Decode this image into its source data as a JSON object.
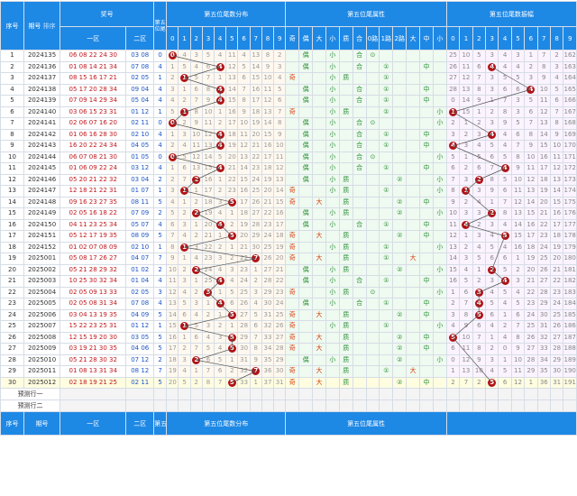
{
  "headers": {
    "seq": "序号",
    "period": "期号",
    "sort": "排序",
    "award": "奖号",
    "zone1": "一区",
    "zone2": "二区",
    "fifth": "第五位尾",
    "dist": "第五位尾数分布",
    "attr": "第五位尾属性",
    "amp": "第五位尾数振幅",
    "digits": [
      "0",
      "1",
      "2",
      "3",
      "4",
      "5",
      "6",
      "7",
      "8",
      "9"
    ],
    "attrs": [
      "奇",
      "偶",
      "大",
      "小",
      "质",
      "合",
      "0路",
      "1路",
      "2路",
      "大",
      "中",
      "小"
    ]
  },
  "rows": [
    {
      "n": "1",
      "p": "2024135",
      "z1": "06 08 22 24 30",
      "z2": "03 08",
      "v": "0",
      "dist": [
        "0",
        "4",
        "3",
        "5",
        "4",
        "11",
        "4",
        "13",
        "8",
        "2"
      ],
      "a": [
        "",
        "偶",
        "",
        "小",
        "",
        "合",
        "⊙",
        "",
        "",
        "",
        "",
        ""
      ],
      "amp": [
        "25",
        "10",
        "5",
        "3",
        "4",
        "3",
        "1",
        "7",
        "2",
        "162"
      ]
    },
    {
      "n": "2",
      "p": "2024136",
      "z1": "01 08 14 21 34",
      "z2": "07 08",
      "v": "4",
      "dist": [
        "1",
        "5",
        "4",
        "6",
        "4",
        "12",
        "5",
        "14",
        "9",
        "3"
      ],
      "a": [
        "",
        "偶",
        "",
        "小",
        "",
        "合",
        "",
        "①",
        "",
        "",
        "中",
        ""
      ],
      "amp": [
        "26",
        "11",
        "6",
        "4",
        "4",
        "4",
        "2",
        "8",
        "3",
        "163"
      ]
    },
    {
      "n": "3",
      "p": "2024137",
      "z1": "08 15 16 17 21",
      "z2": "02 05",
      "v": "1",
      "dist": [
        "2",
        "1",
        "5",
        "7",
        "1",
        "13",
        "6",
        "15",
        "10",
        "4"
      ],
      "a": [
        "奇",
        "",
        "",
        "小",
        "质",
        "",
        "",
        "①",
        "",
        "",
        "",
        ""
      ],
      "amp": [
        "27",
        "12",
        "7",
        "3",
        "5",
        "5",
        "3",
        "9",
        "4",
        "164"
      ]
    },
    {
      "n": "4",
      "p": "2024138",
      "z1": "05 17 20 28 34",
      "z2": "09 04",
      "v": "4",
      "dist": [
        "3",
        "1",
        "6",
        "8",
        "4",
        "14",
        "7",
        "16",
        "11",
        "5"
      ],
      "a": [
        "",
        "偶",
        "",
        "小",
        "",
        "合",
        "",
        "①",
        "",
        "",
        "中",
        ""
      ],
      "amp": [
        "28",
        "13",
        "8",
        "3",
        "6",
        "6",
        "4",
        "10",
        "5",
        "165"
      ]
    },
    {
      "n": "5",
      "p": "2024139",
      "z1": "07 09 14 29 34",
      "z2": "05 04",
      "v": "4",
      "dist": [
        "4",
        "2",
        "7",
        "9",
        "4",
        "15",
        "8",
        "17",
        "12",
        "6"
      ],
      "a": [
        "",
        "偶",
        "",
        "小",
        "",
        "合",
        "",
        "①",
        "",
        "",
        "中",
        ""
      ],
      "amp": [
        "0",
        "14",
        "9",
        "1",
        "7",
        "3",
        "5",
        "11",
        "6",
        "166"
      ]
    },
    {
      "n": "6",
      "p": "2024140",
      "z1": "03 06 15 23 31",
      "z2": "01 12",
      "v": "1",
      "dist": [
        "5",
        "1",
        "8",
        "10",
        "1",
        "16",
        "9",
        "18",
        "13",
        "7"
      ],
      "a": [
        "奇",
        "",
        "",
        "小",
        "质",
        "",
        "",
        "①",
        "",
        "",
        "",
        "小"
      ],
      "amp": [
        "1",
        "15",
        "1",
        "2",
        "8",
        "3",
        "6",
        "12",
        "7",
        "167"
      ]
    },
    {
      "n": "7",
      "p": "2024141",
      "z1": "02 06 07 16 20",
      "z2": "02 11",
      "v": "0",
      "dist": [
        "0",
        "2",
        "9",
        "11",
        "2",
        "17",
        "10",
        "19",
        "14",
        "8"
      ],
      "a": [
        "",
        "偶",
        "",
        "小",
        "",
        "合",
        "⊙",
        "",
        "",
        "",
        "",
        "小"
      ],
      "amp": [
        "2",
        "1",
        "2",
        "3",
        "9",
        "5",
        "7",
        "13",
        "8",
        "168"
      ]
    },
    {
      "n": "8",
      "p": "2024142",
      "z1": "01 06 16 28 30",
      "z2": "02 10",
      "v": "4",
      "dist": [
        "1",
        "3",
        "10",
        "12",
        "4",
        "18",
        "11",
        "20",
        "15",
        "9"
      ],
      "a": [
        "",
        "偶",
        "",
        "小",
        "",
        "合",
        "",
        "①",
        "",
        "",
        "中",
        ""
      ],
      "amp": [
        "3",
        "2",
        "3",
        "4",
        "4",
        "6",
        "8",
        "14",
        "9",
        "169"
      ]
    },
    {
      "n": "9",
      "p": "2024143",
      "z1": "16 20 22 24 34",
      "z2": "04 05",
      "v": "4",
      "dist": [
        "2",
        "4",
        "11",
        "13",
        "4",
        "19",
        "12",
        "21",
        "16",
        "10"
      ],
      "a": [
        "",
        "偶",
        "",
        "小",
        "",
        "合",
        "",
        "①",
        "",
        "",
        "中",
        ""
      ],
      "amp": [
        "4",
        "3",
        "4",
        "5",
        "4",
        "7",
        "9",
        "15",
        "10",
        "170"
      ]
    },
    {
      "n": "10",
      "p": "2024144",
      "z1": "06 07 08 21 30",
      "z2": "01 05",
      "v": "0",
      "dist": [
        "0",
        "5",
        "12",
        "14",
        "5",
        "20",
        "13",
        "22",
        "17",
        "11"
      ],
      "a": [
        "",
        "偶",
        "",
        "小",
        "",
        "合",
        "⊙",
        "",
        "",
        "",
        "",
        "小"
      ],
      "amp": [
        "5",
        "1",
        "5",
        "6",
        "5",
        "8",
        "10",
        "16",
        "11",
        "171"
      ]
    },
    {
      "n": "11",
      "p": "2024145",
      "z1": "01 06 09 22 24",
      "z2": "03 12",
      "v": "4",
      "dist": [
        "1",
        "6",
        "13",
        "15",
        "4",
        "21",
        "14",
        "23",
        "18",
        "12"
      ],
      "a": [
        "",
        "偶",
        "",
        "小",
        "",
        "合",
        "",
        "①",
        "",
        "",
        "中",
        ""
      ],
      "amp": [
        "6",
        "2",
        "6",
        "7",
        "4",
        "9",
        "11",
        "17",
        "12",
        "172"
      ]
    },
    {
      "n": "12",
      "p": "2024146",
      "z1": "05 20 21 22 32",
      "z2": "03 04",
      "v": "2",
      "dist": [
        "2",
        "7",
        "2",
        "16",
        "1",
        "22",
        "15",
        "24",
        "19",
        "13"
      ],
      "a": [
        "",
        "偶",
        "",
        "小",
        "质",
        "",
        "",
        "",
        "②",
        "",
        "",
        "小"
      ],
      "amp": [
        "7",
        "3",
        "2",
        "8",
        "5",
        "10",
        "12",
        "18",
        "13",
        "173"
      ]
    },
    {
      "n": "13",
      "p": "2024147",
      "z1": "12 18 21 22 31",
      "z2": "01 07",
      "v": "1",
      "dist": [
        "3",
        "1",
        "1",
        "17",
        "2",
        "23",
        "16",
        "25",
        "20",
        "14"
      ],
      "a": [
        "奇",
        "",
        "",
        "小",
        "质",
        "",
        "",
        "①",
        "",
        "",
        "",
        "小"
      ],
      "amp": [
        "8",
        "1",
        "3",
        "9",
        "6",
        "11",
        "13",
        "19",
        "14",
        "174"
      ]
    },
    {
      "n": "14",
      "p": "2024148",
      "z1": "09 16 23 27 35",
      "z2": "08 11",
      "v": "5",
      "dist": [
        "4",
        "1",
        "2",
        "18",
        "3",
        "5",
        "17",
        "26",
        "21",
        "15"
      ],
      "a": [
        "奇",
        "",
        "大",
        "",
        "质",
        "",
        "",
        "",
        "②",
        "",
        "中",
        ""
      ],
      "amp": [
        "9",
        "2",
        "4",
        "1",
        "7",
        "12",
        "14",
        "20",
        "15",
        "175"
      ]
    },
    {
      "n": "15",
      "p": "2024149",
      "z1": "02 05 16 18 22",
      "z2": "07 09",
      "v": "2",
      "dist": [
        "5",
        "2",
        "2",
        "19",
        "4",
        "1",
        "18",
        "27",
        "22",
        "16"
      ],
      "a": [
        "",
        "偶",
        "",
        "小",
        "质",
        "",
        "",
        "",
        "②",
        "",
        "",
        "小"
      ],
      "amp": [
        "10",
        "3",
        "3",
        "2",
        "8",
        "13",
        "15",
        "21",
        "16",
        "176"
      ]
    },
    {
      "n": "16",
      "p": "2024150",
      "z1": "04 11 23 25 34",
      "z2": "05 07",
      "v": "4",
      "dist": [
        "6",
        "3",
        "1",
        "20",
        "4",
        "2",
        "19",
        "28",
        "23",
        "17"
      ],
      "a": [
        "",
        "偶",
        "",
        "小",
        "",
        "合",
        "",
        "①",
        "",
        "",
        "中",
        ""
      ],
      "amp": [
        "11",
        "4",
        "2",
        "3",
        "4",
        "14",
        "16",
        "22",
        "17",
        "177"
      ]
    },
    {
      "n": "17",
      "p": "2024151",
      "z1": "05 12 17 19 35",
      "z2": "08 09",
      "v": "5",
      "dist": [
        "7",
        "4",
        "2",
        "21",
        "1",
        "5",
        "20",
        "29",
        "24",
        "18"
      ],
      "a": [
        "奇",
        "",
        "大",
        "",
        "质",
        "",
        "",
        "",
        "②",
        "",
        "中",
        ""
      ],
      "amp": [
        "12",
        "1",
        "3",
        "4",
        "5",
        "15",
        "17",
        "23",
        "18",
        "178"
      ]
    },
    {
      "n": "18",
      "p": "2024152",
      "z1": "01 02 07 08 09",
      "z2": "02 10",
      "v": "1",
      "dist": [
        "8",
        "1",
        "3",
        "22",
        "2",
        "1",
        "21",
        "30",
        "25",
        "19"
      ],
      "a": [
        "奇",
        "",
        "",
        "小",
        "质",
        "",
        "",
        "①",
        "",
        "",
        "",
        "小"
      ],
      "amp": [
        "13",
        "2",
        "4",
        "5",
        "4",
        "16",
        "18",
        "24",
        "19",
        "179"
      ]
    },
    {
      "n": "19",
      "p": "2025001",
      "z1": "05 08 17 26 27",
      "z2": "04 07",
      "v": "7",
      "dist": [
        "9",
        "1",
        "4",
        "23",
        "3",
        "2",
        "22",
        "7",
        "26",
        "20"
      ],
      "a": [
        "奇",
        "",
        "大",
        "",
        "质",
        "",
        "",
        "①",
        "",
        "大",
        "",
        ""
      ],
      "amp": [
        "14",
        "3",
        "5",
        "6",
        "6",
        "1",
        "19",
        "25",
        "20",
        "180"
      ]
    },
    {
      "n": "20",
      "p": "2025002",
      "z1": "05 21 28 29 32",
      "z2": "01 02",
      "v": "2",
      "dist": [
        "10",
        "2",
        "2",
        "24",
        "4",
        "3",
        "23",
        "1",
        "27",
        "21"
      ],
      "a": [
        "",
        "偶",
        "",
        "小",
        "质",
        "",
        "",
        "",
        "②",
        "",
        "",
        "小"
      ],
      "amp": [
        "15",
        "4",
        "1",
        "2",
        "5",
        "2",
        "20",
        "26",
        "21",
        "181"
      ]
    },
    {
      "n": "21",
      "p": "2025003",
      "z1": "10 25 30 32 34",
      "z2": "01 04",
      "v": "4",
      "dist": [
        "11",
        "3",
        "1",
        "25",
        "4",
        "4",
        "24",
        "2",
        "28",
        "22"
      ],
      "a": [
        "",
        "偶",
        "",
        "小",
        "",
        "合",
        "",
        "①",
        "",
        "",
        "中",
        ""
      ],
      "amp": [
        "16",
        "5",
        "2",
        "3",
        "4",
        "3",
        "21",
        "27",
        "22",
        "182"
      ]
    },
    {
      "n": "22",
      "p": "2025004",
      "z1": "02 05 09 13 33",
      "z2": "02 05",
      "v": "3",
      "dist": [
        "12",
        "4",
        "2",
        "3",
        "1",
        "5",
        "25",
        "3",
        "29",
        "23"
      ],
      "a": [
        "奇",
        "",
        "",
        "小",
        "质",
        "",
        "⊙",
        "",
        "",
        "",
        "",
        "小"
      ],
      "amp": [
        "1",
        "6",
        "3",
        "4",
        "5",
        "4",
        "22",
        "28",
        "23",
        "183"
      ]
    },
    {
      "n": "23",
      "p": "2025005",
      "z1": "02 05 08 31 34",
      "z2": "07 08",
      "v": "4",
      "dist": [
        "13",
        "5",
        "3",
        "1",
        "4",
        "6",
        "26",
        "4",
        "30",
        "24"
      ],
      "a": [
        "",
        "偶",
        "",
        "小",
        "",
        "合",
        "",
        "①",
        "",
        "",
        "中",
        ""
      ],
      "amp": [
        "2",
        "7",
        "4",
        "5",
        "4",
        "5",
        "23",
        "29",
        "24",
        "184"
      ]
    },
    {
      "n": "24",
      "p": "2025006",
      "z1": "03 04 13 19 35",
      "z2": "04 09",
      "v": "5",
      "dist": [
        "14",
        "6",
        "4",
        "2",
        "1",
        "5",
        "27",
        "5",
        "31",
        "25"
      ],
      "a": [
        "奇",
        "",
        "大",
        "",
        "质",
        "",
        "",
        "",
        "②",
        "",
        "中",
        ""
      ],
      "amp": [
        "3",
        "8",
        "5",
        "6",
        "1",
        "6",
        "24",
        "30",
        "25",
        "185"
      ]
    },
    {
      "n": "25",
      "p": "2025007",
      "z1": "15 22 23 25 31",
      "z2": "01 12",
      "v": "1",
      "dist": [
        "15",
        "1",
        "5",
        "3",
        "2",
        "1",
        "28",
        "6",
        "32",
        "26"
      ],
      "a": [
        "奇",
        "",
        "",
        "小",
        "质",
        "",
        "",
        "①",
        "",
        "",
        "",
        "小"
      ],
      "amp": [
        "4",
        "9",
        "6",
        "4",
        "2",
        "7",
        "25",
        "31",
        "26",
        "186"
      ]
    },
    {
      "n": "26",
      "p": "2025008",
      "z1": "12 15 19 20 30",
      "z2": "03 05",
      "v": "5",
      "dist": [
        "16",
        "1",
        "6",
        "4",
        "3",
        "5",
        "29",
        "7",
        "33",
        "27"
      ],
      "a": [
        "奇",
        "",
        "大",
        "",
        "质",
        "",
        "",
        "",
        "②",
        "",
        "中",
        ""
      ],
      "amp": [
        "5",
        "10",
        "7",
        "1",
        "4",
        "8",
        "26",
        "32",
        "27",
        "187"
      ]
    },
    {
      "n": "27",
      "p": "2025009",
      "z1": "03 19 21 30 35",
      "z2": "04 06",
      "v": "5",
      "dist": [
        "17",
        "2",
        "7",
        "5",
        "4",
        "5",
        "30",
        "8",
        "34",
        "28"
      ],
      "a": [
        "奇",
        "",
        "大",
        "",
        "质",
        "",
        "",
        "",
        "②",
        "",
        "中",
        ""
      ],
      "amp": [
        "6",
        "11",
        "8",
        "2",
        "0",
        "9",
        "27",
        "33",
        "28",
        "188"
      ]
    },
    {
      "n": "28",
      "p": "2025010",
      "z1": "05 21 28 30 32",
      "z2": "07 12",
      "v": "2",
      "dist": [
        "18",
        "3",
        "2",
        "6",
        "5",
        "1",
        "31",
        "9",
        "35",
        "29"
      ],
      "a": [
        "",
        "偶",
        "",
        "小",
        "质",
        "",
        "",
        "",
        "②",
        "",
        "",
        "小"
      ],
      "amp": [
        "0",
        "12",
        "9",
        "3",
        "1",
        "10",
        "28",
        "34",
        "29",
        "189"
      ]
    },
    {
      "n": "29",
      "p": "2025011",
      "z1": "01 08 13 31 34",
      "z2": "08 12",
      "v": "7",
      "dist": [
        "19",
        "4",
        "1",
        "7",
        "6",
        "2",
        "32",
        "7",
        "36",
        "30"
      ],
      "a": [
        "奇",
        "",
        "大",
        "",
        "质",
        "",
        "",
        "①",
        "",
        "大",
        "",
        ""
      ],
      "amp": [
        "1",
        "13",
        "10",
        "4",
        "5",
        "11",
        "29",
        "35",
        "30",
        "190"
      ]
    },
    {
      "n": "30",
      "p": "2025012",
      "z1": "02 18 19 21 25",
      "z2": "02 11",
      "v": "5",
      "dist": [
        "20",
        "5",
        "2",
        "8",
        "7",
        "5",
        "33",
        "1",
        "37",
        "31"
      ],
      "a": [
        "奇",
        "",
        "大",
        "",
        "质",
        "",
        "",
        "",
        "②",
        "",
        "中",
        ""
      ],
      "amp": [
        "2",
        "7",
        "2",
        "5",
        "6",
        "12",
        "1",
        "36",
        "31",
        "191"
      ]
    }
  ],
  "predict": {
    "row1": "预测行一",
    "row2": "预测行二"
  }
}
